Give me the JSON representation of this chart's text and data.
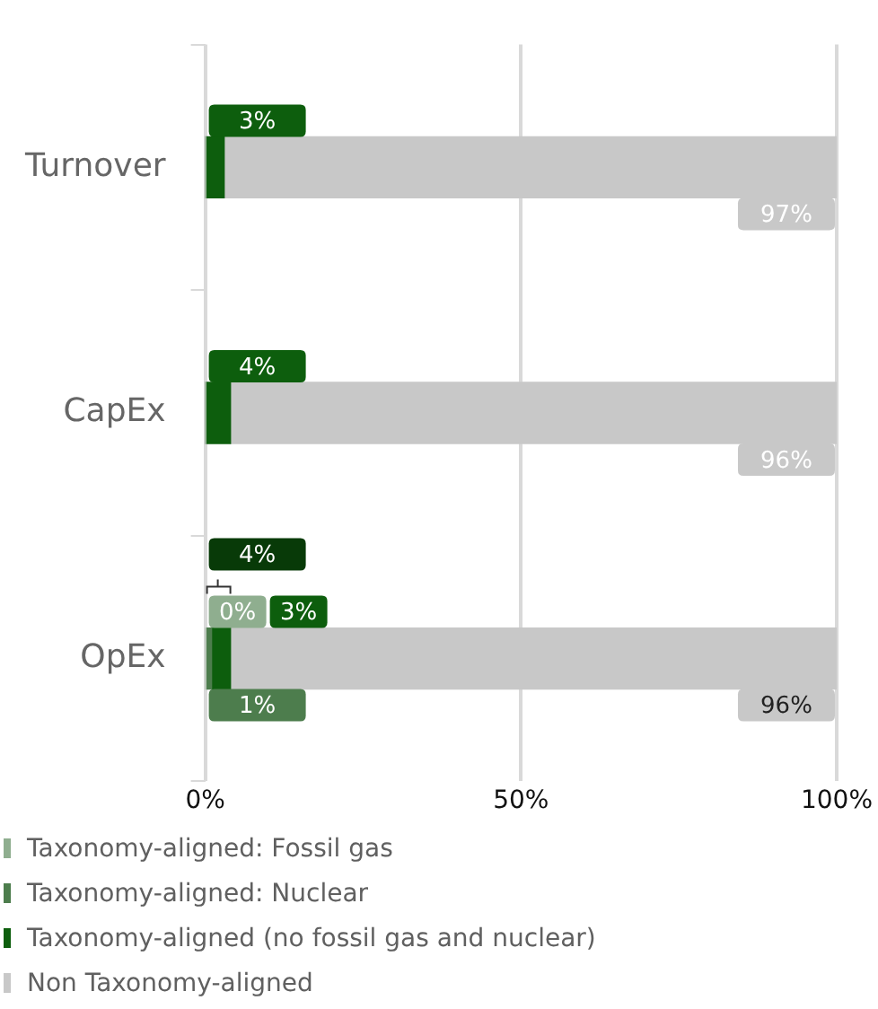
{
  "chart_data": {
    "type": "bar",
    "orientation": "horizontal",
    "stacked": true,
    "categories": [
      "Turnover",
      "CapEx",
      "OpEx"
    ],
    "series": [
      {
        "name": "Taxonomy-aligned: Fossil gas",
        "color": "#8fae8f",
        "values": [
          0,
          0,
          0
        ],
        "value_labels": [
          null,
          null,
          "0%"
        ]
      },
      {
        "name": "Taxonomy-aligned: Nuclear",
        "color": "#4d7d4d",
        "values": [
          0,
          0,
          1
        ],
        "value_labels": [
          null,
          null,
          "1%"
        ]
      },
      {
        "name": "Taxonomy-aligned (no fossil gas and nuclear)",
        "color": "#0d5e0d",
        "values": [
          3,
          4,
          3
        ],
        "value_labels": [
          "3%",
          "4%",
          "3%"
        ]
      },
      {
        "name": "Non Taxonomy-aligned",
        "color": "#c8c8c8",
        "values": [
          97,
          96,
          96
        ],
        "value_labels": [
          "97%",
          "96%",
          "96%"
        ]
      }
    ],
    "xlim": [
      0,
      100
    ],
    "xticks": [
      {
        "value": 0,
        "label": "0%"
      },
      {
        "value": 50,
        "label": "50%"
      },
      {
        "value": 100,
        "label": "100%"
      }
    ],
    "grid": "x",
    "legend": "bottom",
    "annotations": [
      "4%"
    ]
  }
}
